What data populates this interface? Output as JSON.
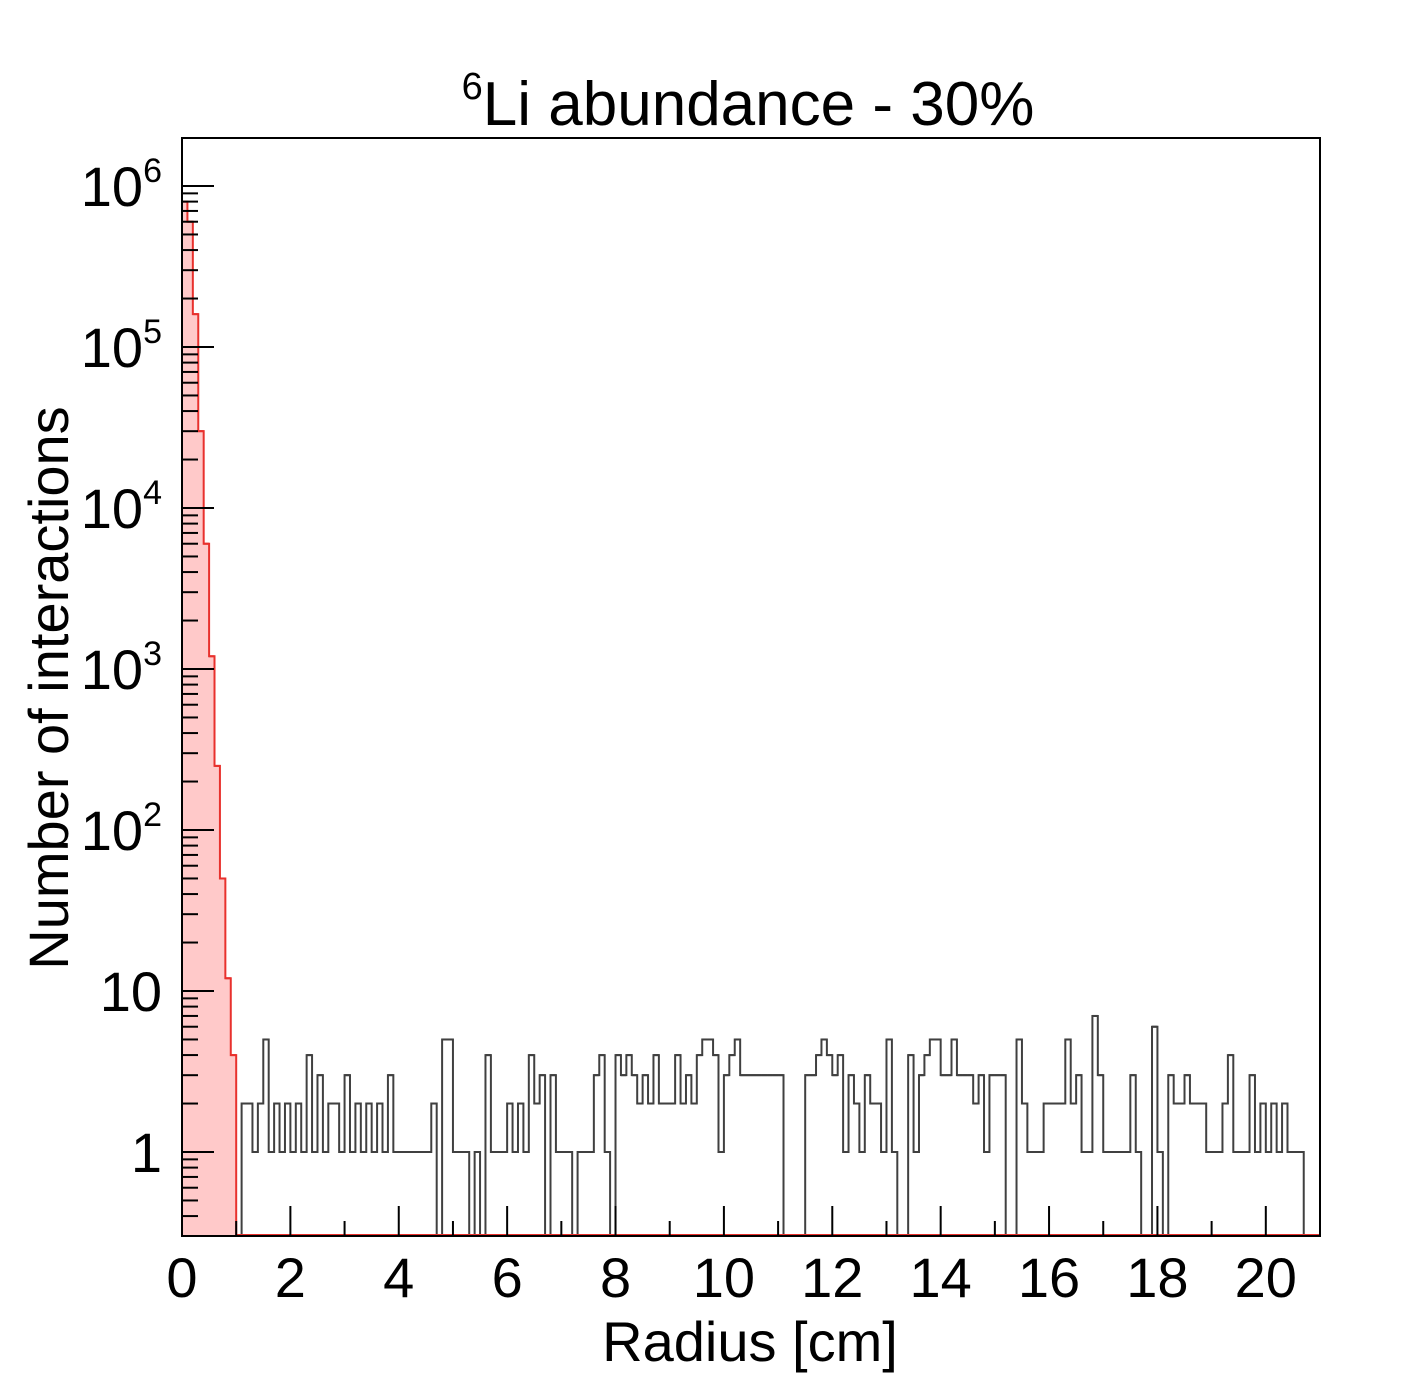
{
  "chart_data": {
    "type": "histogram",
    "title_sup": "6",
    "title_main": "Li abundance - 30%",
    "xlabel": "Radius [cm]",
    "ylabel": "Number of interactions",
    "y_scale": "log",
    "xlim": [
      0,
      21
    ],
    "ylim": [
      0.3,
      2000000
    ],
    "bin_width": 0.1,
    "grid": false,
    "x_tick_labels": [
      "0",
      "2",
      "4",
      "6",
      "8",
      "10",
      "12",
      "14",
      "16",
      "18",
      "20"
    ],
    "y_tick_labels": [
      {
        "value": 1000000,
        "base": "10",
        "sup": "6"
      },
      {
        "value": 100000,
        "base": "10",
        "sup": "5"
      },
      {
        "value": 10000,
        "base": "10",
        "sup": "4"
      },
      {
        "value": 1000,
        "base": "10",
        "sup": "3"
      },
      {
        "value": 100,
        "base": "10",
        "sup": "2"
      },
      {
        "value": 10,
        "base": "10",
        "sup": ""
      },
      {
        "value": 1,
        "base": "1",
        "sup": ""
      }
    ],
    "series": [
      {
        "color": "#e8312d",
        "fill": "#ffc9c9",
        "x_start": 0.0,
        "values": [
          800000,
          600000,
          160000,
          30000,
          6000,
          1200,
          250,
          50,
          12,
          4,
          0
        ]
      },
      {
        "color": "#404040",
        "x_start": 1.0,
        "values": [
          0,
          2,
          2,
          1,
          2,
          5,
          1,
          2,
          1,
          2,
          1,
          2,
          1,
          4,
          1,
          3,
          1,
          2,
          2,
          1,
          3,
          1,
          2,
          1,
          2,
          1,
          2,
          1,
          3,
          1,
          1,
          1,
          1,
          1,
          1,
          1,
          2,
          0,
          5,
          5,
          1,
          1,
          1,
          0,
          1,
          0,
          4,
          1,
          1,
          1,
          2,
          1,
          2,
          1,
          4,
          2,
          3,
          0,
          3,
          1,
          1,
          1,
          0,
          1,
          1,
          1,
          3,
          4,
          1,
          0,
          4,
          3,
          4,
          3,
          2,
          3,
          2,
          4,
          2,
          2,
          2,
          4,
          2,
          3,
          2,
          4,
          5,
          5,
          4,
          1,
          3,
          4,
          5,
          3,
          3,
          3,
          3,
          3,
          3,
          3,
          3,
          0,
          0,
          0,
          0,
          3,
          3,
          4,
          5,
          4,
          3,
          4,
          1,
          3,
          2,
          1,
          3,
          2,
          2,
          1,
          5,
          1,
          0,
          0,
          4,
          1,
          3,
          4,
          5,
          5,
          3,
          3,
          5,
          3,
          3,
          3,
          2,
          3,
          1,
          3,
          3,
          3,
          0,
          0,
          5,
          2,
          1,
          1,
          1,
          2,
          2,
          2,
          2,
          5,
          2,
          3,
          1,
          1,
          7,
          3,
          1,
          1,
          1,
          1,
          1,
          3,
          1,
          0,
          0,
          6,
          1,
          0,
          3,
          2,
          2,
          3,
          2,
          2,
          2,
          1,
          1,
          1,
          2,
          4,
          1,
          1,
          1,
          3,
          1,
          2,
          1,
          2,
          1,
          2,
          1,
          1,
          1,
          0
        ]
      }
    ]
  }
}
